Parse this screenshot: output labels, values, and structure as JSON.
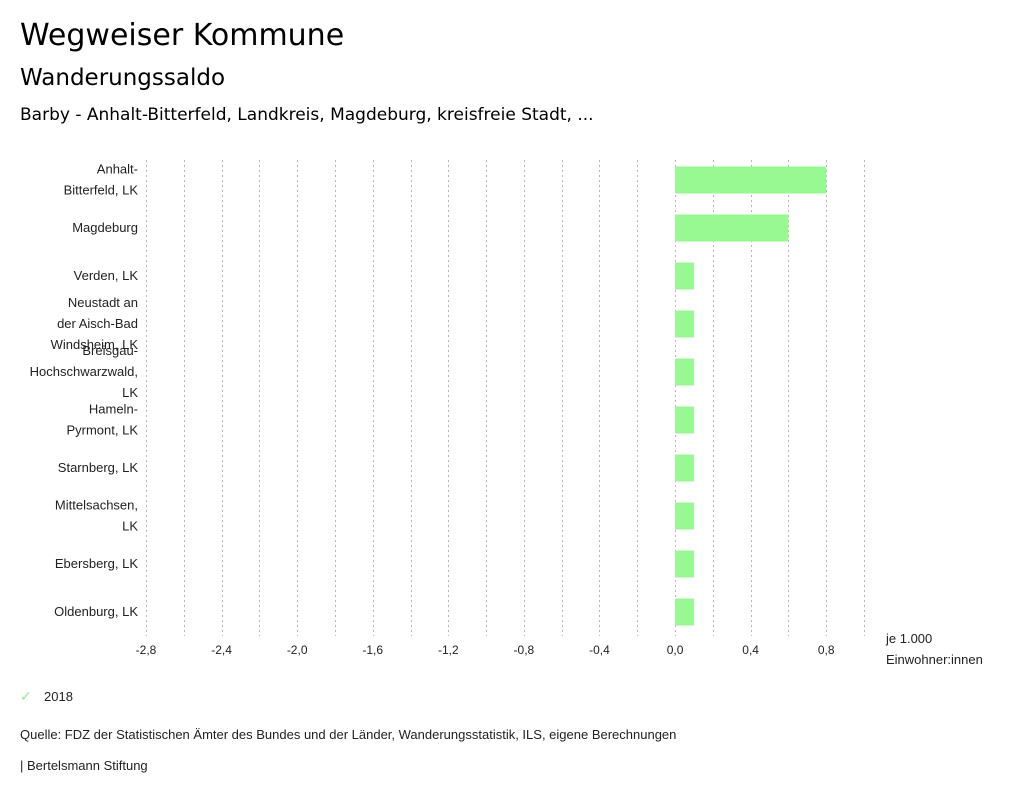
{
  "header": {
    "title": "Wegweiser Kommune",
    "subtitle": "Wanderungssaldo",
    "selection": "Barby - Anhalt-Bitterfeld, Landkreis, Magdeburg, kreisfreie Stadt, ..."
  },
  "chart_data": {
    "type": "bar",
    "orientation": "horizontal",
    "title": "Wanderungssaldo",
    "xlabel": "je 1.000 Einwohner:innen",
    "unit_lines": [
      "je 1.000",
      "Einwohner:innen"
    ],
    "ylabel": "",
    "xlim": [
      -2.8,
      1.0
    ],
    "grid": true,
    "tick_values": [
      -2.8,
      -2.4,
      -2.0,
      -1.6,
      -1.2,
      -0.8,
      -0.4,
      0.0,
      0.4,
      0.8
    ],
    "tick_labels": [
      "-2,8",
      "-2,4",
      "-2,0",
      "-1,6",
      "-1,2",
      "-0,8",
      "-0,4",
      "0,0",
      "0,4",
      "0,8"
    ],
    "categories": [
      [
        "Anhalt-",
        "Bitterfeld, LK"
      ],
      [
        "Magdeburg"
      ],
      [
        "Verden, LK"
      ],
      [
        "Neustadt an",
        "der Aisch-Bad",
        "Windsheim, LK"
      ],
      [
        "Breisgau-",
        "Hochschwarzwald,",
        "LK"
      ],
      [
        "Hameln-",
        "Pyrmont, LK"
      ],
      [
        "Starnberg, LK"
      ],
      [
        "Mittelsachsen,",
        "LK"
      ],
      [
        "Ebersberg, LK"
      ],
      [
        "Oldenburg, LK"
      ]
    ],
    "series": [
      {
        "name": "2018",
        "color": "#98f892",
        "values": [
          0.8,
          0.6,
          0.1,
          0.1,
          0.1,
          0.1,
          0.1,
          0.1,
          0.1,
          0.1
        ]
      }
    ],
    "legend": {
      "position": "bottom-left",
      "entries": [
        "2018"
      ]
    }
  },
  "legend": {
    "label": "2018",
    "icon": "check-icon"
  },
  "footer": {
    "source": "Quelle: FDZ der Statistischen Ämter des Bundes und der Länder, Wanderungsstatistik, ILS, eigene Berechnungen",
    "credit": "| Bertelsmann Stiftung"
  }
}
